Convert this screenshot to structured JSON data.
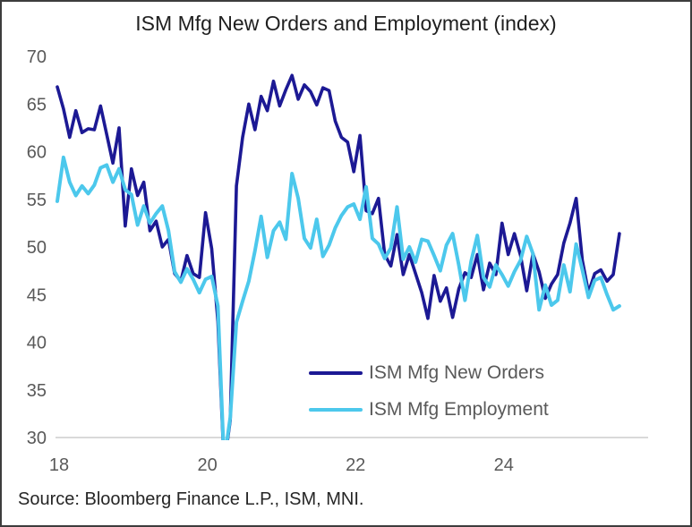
{
  "title": "ISM Mfg New Orders and Employment (index)",
  "source": "Source: Bloomberg Finance L.P., ISM, MNI.",
  "colors": {
    "new_orders": "#1c1994",
    "employment": "#4cc8ec",
    "gridline": "#d9d9d9",
    "axis_text": "#595959",
    "title_text": "#1f1f1f",
    "source_text": "#262626",
    "border": "#3d3d3d"
  },
  "legend": {
    "items": [
      {
        "label": "ISM Mfg New Orders",
        "series": "new_orders"
      },
      {
        "label": "ISM Mfg Employment",
        "series": "employment"
      }
    ]
  },
  "chart_data": {
    "type": "line",
    "title": "ISM Mfg New Orders and Employment (index)",
    "x_start": "2018-01",
    "x_end": "2025-08",
    "frequency": "monthly",
    "xlabel": "",
    "ylabel": "",
    "ylim": [
      30,
      70
    ],
    "y_ticks": [
      70,
      65,
      60,
      55,
      50,
      45,
      40,
      35,
      30
    ],
    "x_tick_labels": [
      "18",
      "20",
      "22",
      "24"
    ],
    "x_tick_month_index": [
      0,
      24,
      48,
      72
    ],
    "grid": "horizontal baseline at 30 only; values below 30 are clipped",
    "legend_position": "inside lower-center",
    "series": [
      {
        "name": "ISM Mfg New Orders",
        "color": "#1c1994",
        "stroke_width": 3.6,
        "values": [
          66.8,
          64.5,
          61.5,
          64.3,
          62.0,
          62.4,
          62.3,
          64.8,
          61.8,
          58.8,
          62.5,
          52.2,
          58.2,
          55.4,
          56.8,
          51.7,
          52.7,
          50.0,
          50.8,
          47.2,
          46.4,
          49.1,
          47.2,
          46.8,
          53.6,
          49.8,
          42.2,
          27.1,
          31.8,
          56.4,
          61.5,
          65.0,
          62.3,
          65.8,
          64.3,
          67.4,
          64.8,
          66.5,
          68.0,
          65.5,
          67.0,
          66.3,
          64.9,
          66.7,
          66.4,
          63.2,
          61.5,
          61.0,
          57.9,
          61.7,
          53.8,
          53.5,
          55.1,
          49.2,
          48.0,
          51.3,
          47.1,
          49.2,
          47.2,
          45.2,
          42.5,
          47.0,
          44.3,
          45.7,
          42.6,
          45.6,
          47.3,
          46.8,
          49.2,
          45.5,
          48.3,
          47.1,
          52.5,
          49.2,
          51.4,
          49.1,
          45.4,
          49.3,
          47.4,
          44.6,
          46.1,
          47.1,
          50.4,
          52.5,
          55.1,
          48.6,
          45.2,
          47.2,
          47.6,
          46.4,
          47.1,
          51.4
        ]
      },
      {
        "name": "ISM Mfg Employment",
        "color": "#4cc8ec",
        "stroke_width": 4.0,
        "values": [
          54.8,
          59.4,
          56.8,
          55.4,
          56.4,
          55.6,
          56.5,
          58.3,
          58.6,
          56.8,
          58.2,
          56.0,
          55.5,
          52.3,
          54.3,
          52.5,
          53.5,
          54.3,
          51.7,
          47.4,
          46.3,
          47.7,
          46.6,
          45.2,
          46.6,
          46.9,
          43.8,
          27.5,
          32.1,
          42.1,
          44.3,
          46.4,
          49.6,
          53.2,
          48.9,
          51.7,
          52.6,
          50.8,
          57.7,
          55.1,
          50.9,
          49.9,
          52.9,
          49.0,
          50.2,
          52.0,
          53.3,
          54.2,
          54.5,
          52.9,
          56.3,
          50.9,
          50.3,
          48.8,
          49.9,
          54.2,
          48.7,
          50.0,
          48.4,
          50.8,
          50.6,
          49.1,
          47.5,
          50.2,
          51.4,
          48.1,
          44.4,
          48.5,
          51.2,
          46.8,
          45.8,
          48.1,
          47.1,
          45.9,
          47.4,
          48.6,
          51.1,
          49.3,
          43.4,
          46.0,
          43.9,
          44.4,
          48.1,
          45.3,
          50.3,
          47.6,
          44.7,
          46.5,
          46.8,
          45.0,
          43.4,
          43.8
        ]
      }
    ]
  }
}
